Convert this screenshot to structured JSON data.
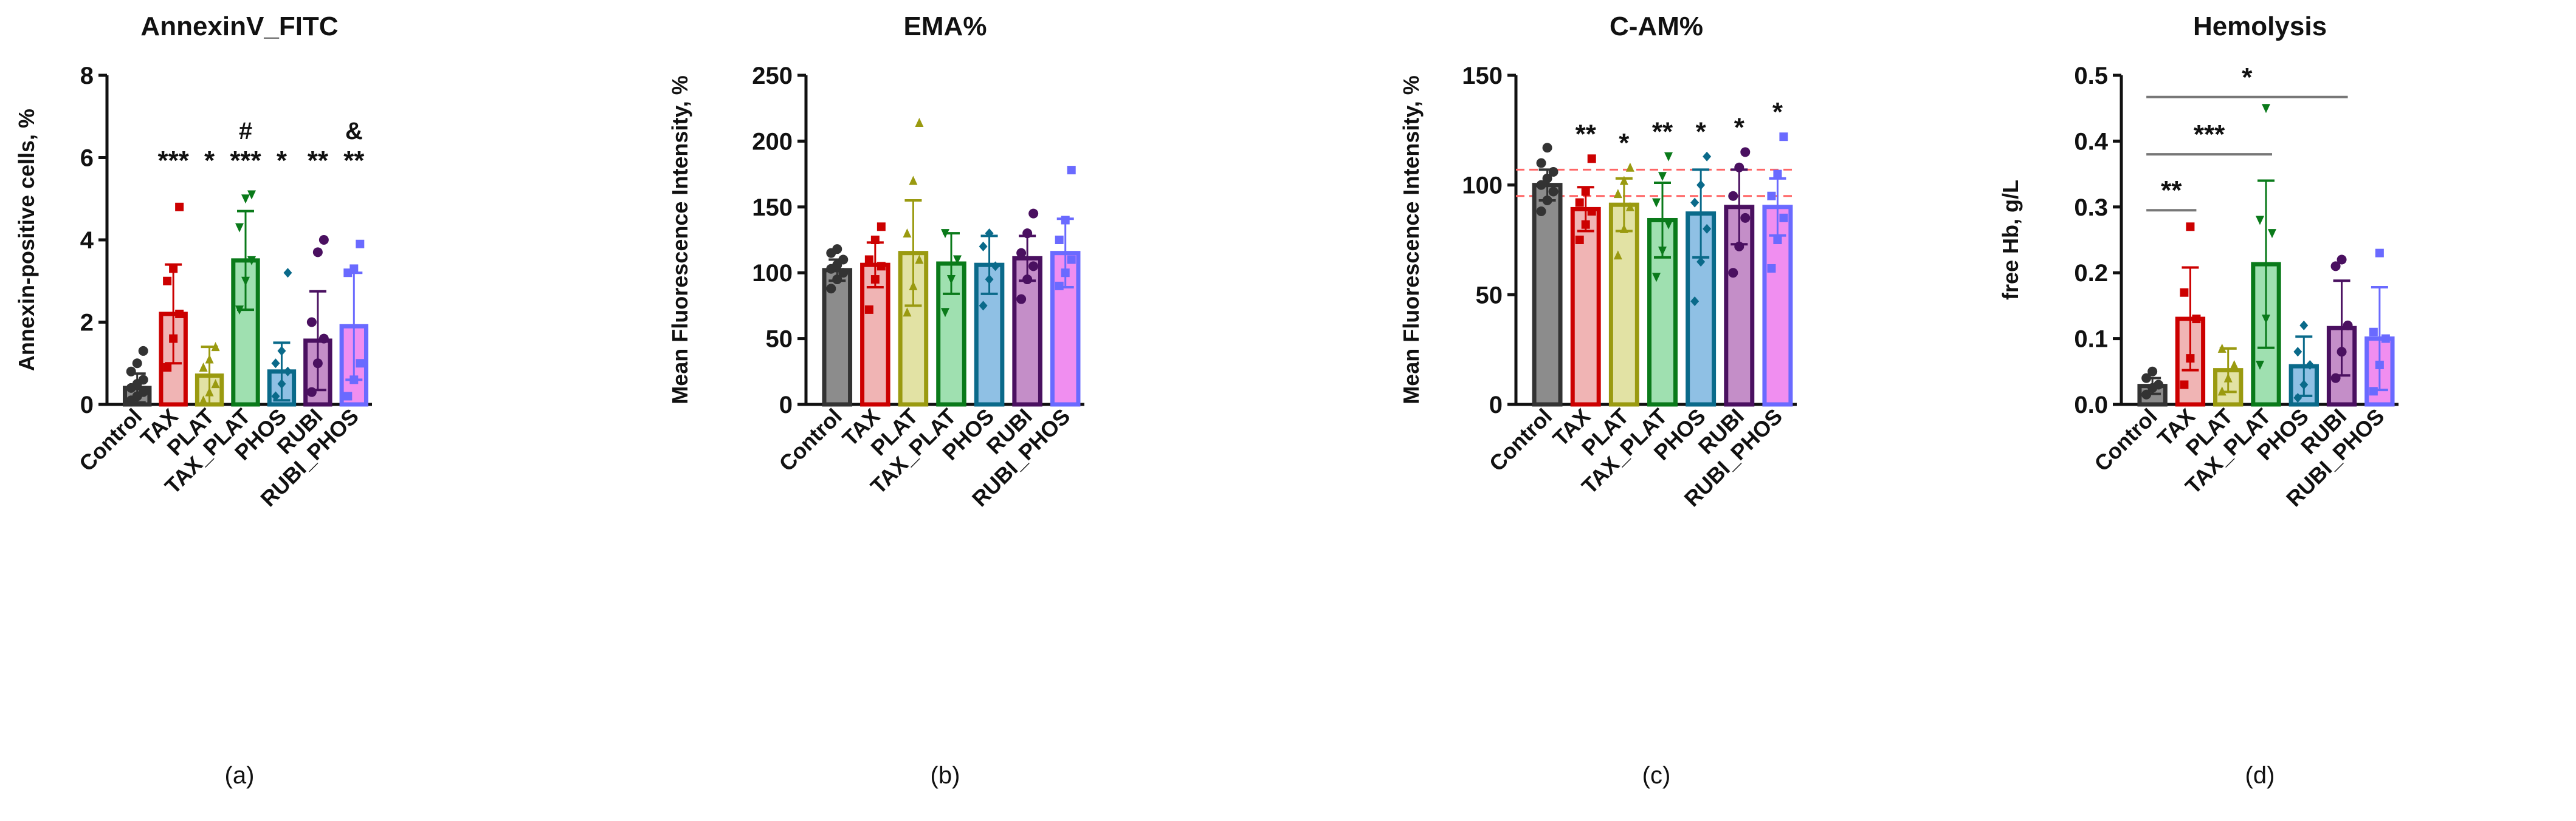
{
  "chart_data": [
    {
      "type": "bar",
      "panel_label": "(a)",
      "panel_letter": "a",
      "title": "AnnexinV_FITC",
      "xlabel": "",
      "ylabel": "Annexin-positive cells, %",
      "ylim": [
        0,
        8
      ],
      "yticks": [
        0,
        2,
        4,
        6,
        8
      ],
      "categories": [
        "Control",
        "TAX",
        "PLAT",
        "TAX_PLAT",
        "PHOS",
        "RUBI",
        "RUBI_PHOS"
      ],
      "values": [
        0.4,
        2.2,
        0.7,
        3.5,
        0.8,
        1.55,
        1.9
      ],
      "sd": [
        0.35,
        1.2,
        0.7,
        1.2,
        0.7,
        1.2,
        1.3
      ],
      "points": [
        [
          0.1,
          0.2,
          0.3,
          0.4,
          0.5,
          0.6,
          0.8,
          1.0,
          1.3
        ],
        [
          0.9,
          1.6,
          2.2,
          3.0,
          3.3,
          4.8
        ],
        [
          0.1,
          0.3,
          0.5,
          0.9,
          1.1,
          1.4
        ],
        [
          2.3,
          3.0,
          3.5,
          4.3,
          5.0,
          5.1
        ],
        [
          0.2,
          0.5,
          0.8,
          1.0,
          1.3,
          3.2
        ],
        [
          0.3,
          1.0,
          1.6,
          2.0,
          3.7,
          4.0
        ],
        [
          0.2,
          0.6,
          1.0,
          3.2,
          3.3,
          3.9
        ]
      ],
      "annotations": [
        "",
        "***",
        "*",
        "***",
        "*",
        "**",
        "**"
      ],
      "annotations_extra": [
        "",
        "",
        "",
        "#",
        "",
        "",
        "&"
      ],
      "reference_lines": [],
      "brackets": []
    },
    {
      "type": "bar",
      "panel_label": "(b)",
      "panel_letter": "b",
      "title": "EMA%",
      "xlabel": "",
      "ylabel": "Mean Fluorescence Intensity, %",
      "ylim": [
        0,
        250
      ],
      "yticks": [
        0,
        50,
        100,
        150,
        200,
        250
      ],
      "categories": [
        "Control",
        "TAX",
        "PLAT",
        "TAX_PLAT",
        "PHOS",
        "RUBI",
        "RUBI_PHOS"
      ],
      "values": [
        102,
        106,
        115,
        107,
        106,
        111,
        115
      ],
      "sd": [
        8,
        17,
        40,
        23,
        22,
        17,
        26
      ],
      "points": [
        [
          88,
          95,
          100,
          103,
          106,
          110,
          115,
          118
        ],
        [
          72,
          95,
          105,
          110,
          125,
          135
        ],
        [
          70,
          90,
          110,
          130,
          170,
          214
        ],
        [
          70,
          95,
          110,
          130
        ],
        [
          75,
          95,
          105,
          120,
          130
        ],
        [
          80,
          95,
          105,
          115,
          130,
          145
        ],
        [
          90,
          100,
          110,
          125,
          140,
          178
        ]
      ],
      "annotations": [
        "",
        "",
        "",
        "",
        "",
        "",
        ""
      ],
      "annotations_extra": [
        "",
        "",
        "",
        "",
        "",
        "",
        ""
      ],
      "reference_lines": [],
      "brackets": []
    },
    {
      "type": "bar",
      "panel_label": "(c)",
      "panel_letter": "c",
      "title": "C-AM%",
      "xlabel": "",
      "ylabel": "Mean Fluorescence Intensity, %",
      "ylim": [
        0,
        150
      ],
      "yticks": [
        0,
        50,
        100,
        150
      ],
      "categories": [
        "Control",
        "TAX",
        "PLAT",
        "TAX_PLAT",
        "PHOS",
        "RUBI",
        "RUBI_PHOS"
      ],
      "values": [
        100,
        89,
        91,
        84,
        87,
        90,
        90
      ],
      "sd": [
        7,
        10,
        12,
        17,
        20,
        17,
        13
      ],
      "points": [
        [
          88,
          93,
          97,
          100,
          103,
          106,
          110,
          117
        ],
        [
          75,
          82,
          88,
          92,
          97,
          112
        ],
        [
          68,
          80,
          90,
          96,
          102,
          108
        ],
        [
          58,
          70,
          82,
          92,
          104,
          113
        ],
        [
          47,
          65,
          80,
          92,
          100,
          113
        ],
        [
          60,
          72,
          85,
          95,
          108,
          115
        ],
        [
          62,
          75,
          85,
          95,
          105,
          122
        ]
      ],
      "annotations": [
        "",
        "**",
        "*",
        "**",
        "*",
        "*",
        "*"
      ],
      "annotations_extra": [
        "",
        "",
        "",
        "",
        "",
        "",
        ""
      ],
      "reference_lines": [
        95,
        107
      ],
      "brackets": []
    },
    {
      "type": "bar",
      "panel_label": "(d)",
      "panel_letter": "d",
      "title": "Hemolysis",
      "xlabel": "",
      "ylabel": "free Hb, g/L",
      "ylim": [
        0,
        0.5
      ],
      "yticks": [
        0.0,
        0.1,
        0.2,
        0.3,
        0.4,
        0.5
      ],
      "ytick_labels": [
        "0.0",
        "0.1",
        "0.2",
        "0.3",
        "0.4",
        "0.5"
      ],
      "categories": [
        "Control",
        "TAX",
        "PLAT",
        "TAX_PLAT",
        "PHOS",
        "RUBI",
        "RUBI_PHOS"
      ],
      "values": [
        0.028,
        0.13,
        0.052,
        0.213,
        0.058,
        0.116,
        0.1
      ],
      "sd": [
        0.012,
        0.078,
        0.033,
        0.127,
        0.045,
        0.072,
        0.078
      ],
      "points": [
        [
          0.015,
          0.025,
          0.03,
          0.04,
          0.05
        ],
        [
          0.03,
          0.07,
          0.13,
          0.17,
          0.27
        ],
        [
          0.02,
          0.04,
          0.06,
          0.085
        ],
        [
          0.06,
          0.13,
          0.26,
          0.28,
          0.45
        ],
        [
          0.01,
          0.03,
          0.06,
          0.08,
          0.12
        ],
        [
          0.04,
          0.08,
          0.12,
          0.21,
          0.22
        ],
        [
          0.02,
          0.06,
          0.1,
          0.11,
          0.23
        ]
      ],
      "annotations": [
        "",
        "",
        "",
        "",
        "",
        "",
        ""
      ],
      "annotations_extra": [
        "",
        "",
        "",
        "",
        "",
        "",
        ""
      ],
      "reference_lines": [],
      "brackets": [
        {
          "from": "Control",
          "to": "TAX",
          "y": 0.295,
          "label": "**"
        },
        {
          "from": "Control",
          "to": "TAX_PLAT",
          "y": 0.38,
          "label": "***"
        },
        {
          "from": "Control",
          "to": "RUBI",
          "y": 0.467,
          "label": "*"
        }
      ]
    }
  ],
  "colors": {
    "stroke": [
      "#333333",
      "#cc0000",
      "#9a9a10",
      "#0a7a1a",
      "#0a6a8a",
      "#4a1060",
      "#6a6aff"
    ],
    "fill": [
      "#8c8c8c",
      "#f0b4b4",
      "#e2e2a4",
      "#9fe0b0",
      "#8fc0e4",
      "#c48ec8",
      "#f08ef0"
    ],
    "reference": "#ff6666",
    "bracket": "#777777"
  }
}
